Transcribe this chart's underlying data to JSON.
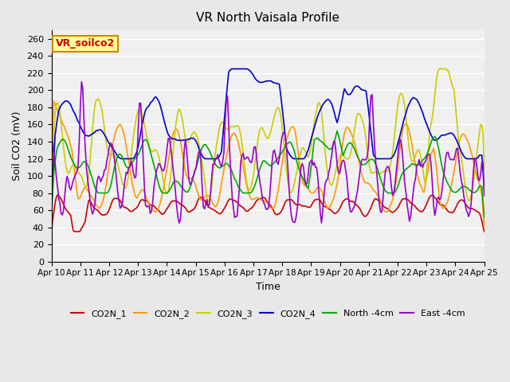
{
  "title": "VR North Vaisala Profile",
  "xlabel": "Time",
  "ylabel": "Soil CO2 (mV)",
  "annotation": "VR_soilco2",
  "ylim": [
    0,
    270
  ],
  "yticks": [
    0,
    20,
    40,
    60,
    80,
    100,
    120,
    140,
    160,
    180,
    200,
    220,
    240,
    260
  ],
  "xtick_labels": [
    "Apr 10",
    "Apr 11",
    "Apr 12",
    "Apr 13",
    "Apr 14",
    "Apr 15",
    "Apr 16",
    "Apr 17",
    "Apr 18",
    "Apr 19",
    "Apr 20",
    "Apr 21",
    "Apr 22",
    "Apr 23",
    "Apr 24",
    "Apr 25"
  ],
  "series_colors": {
    "CO2N_1": "#cc0000",
    "CO2N_2": "#ff9900",
    "CO2N_3": "#cccc00",
    "CO2N_4": "#0000cc",
    "North -4cm": "#00aa00",
    "East -4cm": "#9900cc"
  },
  "legend_labels": [
    "CO2N_1",
    "CO2N_2",
    "CO2N_3",
    "CO2N_4",
    "North -4cm",
    "East -4cm"
  ],
  "bg_color": "#e8e8e8",
  "plot_bg": "#f0f0f0",
  "annotation_bg": "#ffff99",
  "annotation_edge": "#cc8800",
  "annotation_text_color": "#cc0000"
}
